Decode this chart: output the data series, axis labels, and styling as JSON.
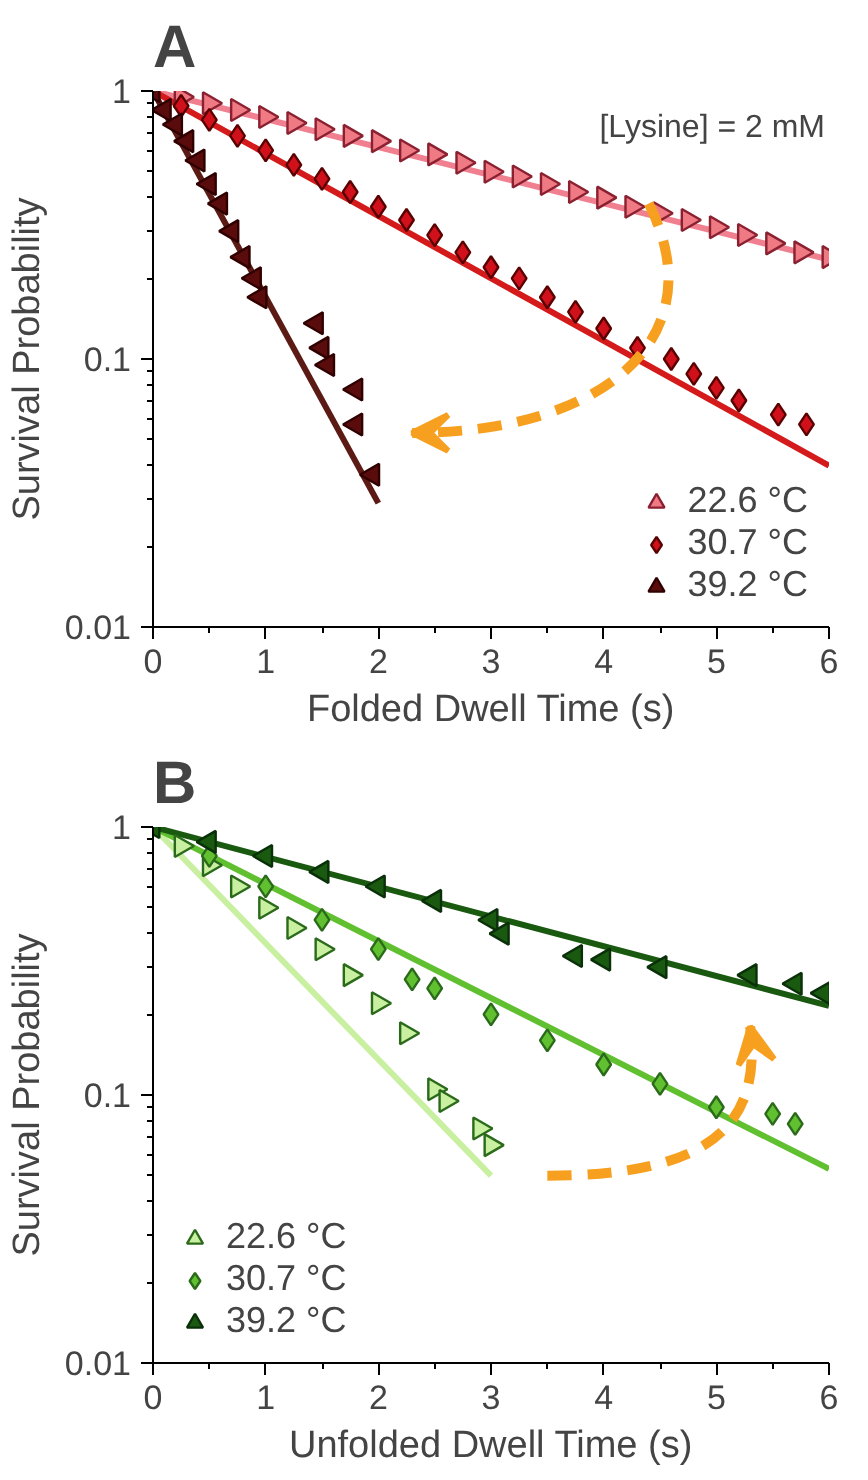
{
  "chart_data": [
    {
      "type": "scatter",
      "title": "A",
      "xlabel": "Folded Dwell Time (s)",
      "ylabel": "Survival Probability",
      "log": "y",
      "xlim": [
        0,
        6
      ],
      "ylim": [
        0.01,
        1
      ],
      "xticks": [
        0,
        1,
        2,
        3,
        4,
        5,
        6
      ],
      "yticks": [
        0.01,
        0.1,
        1
      ],
      "grid": false,
      "legend": "bottom right",
      "annotations": [
        "[Lysine] = 2 mM"
      ],
      "series": [
        {
          "name": "22.6 °C",
          "marker": "triangle",
          "color": "#f07a84",
          "x": [
            0.25,
            0.5,
            0.75,
            1,
            1.25,
            1.5,
            1.75,
            2,
            2.25,
            2.5,
            2.75,
            3,
            3.25,
            3.5,
            3.75,
            4,
            4.25,
            4.5,
            4.75,
            5,
            5.25,
            5.5,
            5.75,
            6
          ],
          "values": [
            0.95,
            0.9,
            0.85,
            0.8,
            0.76,
            0.72,
            0.68,
            0.65,
            0.6,
            0.58,
            0.54,
            0.5,
            0.48,
            0.45,
            0.42,
            0.4,
            0.37,
            0.35,
            0.33,
            0.31,
            0.29,
            0.27,
            0.25,
            0.24
          ]
        },
        {
          "name": "30.7 °C",
          "marker": "diamond",
          "color": "#d0101a",
          "x": [
            0.25,
            0.5,
            0.75,
            1,
            1.25,
            1.5,
            1.75,
            2,
            2.25,
            2.5,
            2.75,
            3,
            3.25,
            3.5,
            3.75,
            4,
            4.3,
            4.6,
            4.8,
            5,
            5.2,
            5.55,
            5.8
          ],
          "values": [
            0.88,
            0.78,
            0.68,
            0.6,
            0.53,
            0.47,
            0.42,
            0.37,
            0.33,
            0.29,
            0.25,
            0.22,
            0.2,
            0.17,
            0.15,
            0.13,
            0.11,
            0.1,
            0.088,
            0.078,
            0.07,
            0.062,
            0.057
          ]
        },
        {
          "name": "39.2 °C",
          "marker": "triangle",
          "color": "#5a0c0c",
          "x": [
            0,
            0.1,
            0.2,
            0.3,
            0.4,
            0.5,
            0.6,
            0.7,
            0.8,
            0.9,
            0.95,
            1.45,
            1.5,
            1.55,
            1.8,
            1.8,
            1.95
          ],
          "values": [
            1,
            0.85,
            0.75,
            0.65,
            0.55,
            0.45,
            0.38,
            0.3,
            0.24,
            0.2,
            0.17,
            0.136,
            0.11,
            0.095,
            0.077,
            0.057,
            0.037
          ]
        },
        {
          "type": "line",
          "color": "#f08090",
          "x": [
            0,
            6
          ],
          "values": [
            1,
            0.235
          ]
        },
        {
          "type": "line",
          "color": "#d41a1a",
          "x": [
            0,
            6
          ],
          "values": [
            1,
            0.04
          ]
        },
        {
          "type": "line",
          "color": "#5c1a14",
          "x": [
            0,
            2
          ],
          "values": [
            1,
            0.029
          ]
        }
      ]
    },
    {
      "type": "scatter",
      "title": "B",
      "xlabel": "Unfolded Dwell Time (s)",
      "ylabel": "Survival Probability",
      "log": "y",
      "xlim": [
        0,
        6
      ],
      "ylim": [
        0.01,
        1
      ],
      "xticks": [
        0,
        1,
        2,
        3,
        4,
        5,
        6
      ],
      "yticks": [
        0.01,
        0.1,
        1
      ],
      "grid": false,
      "legend": "bottom left",
      "series": [
        {
          "name": "22.6 °C",
          "marker": "triangle",
          "color": "#c8f0a0",
          "x": [
            0.25,
            0.5,
            0.75,
            1,
            1.25,
            1.5,
            1.75,
            2,
            2.25,
            2.5,
            2.6,
            2.9,
            3.0
          ],
          "values": [
            0.85,
            0.72,
            0.6,
            0.5,
            0.42,
            0.35,
            0.28,
            0.22,
            0.17,
            0.105,
            0.095,
            0.075,
            0.065
          ]
        },
        {
          "name": "30.7 °C",
          "marker": "diamond",
          "color": "#60c030",
          "x": [
            0.5,
            1,
            1.5,
            2,
            2.3,
            2.5,
            3,
            3.5,
            4,
            4.5,
            5,
            5.5,
            5.7
          ],
          "values": [
            0.78,
            0.6,
            0.45,
            0.35,
            0.27,
            0.25,
            0.2,
            0.16,
            0.13,
            0.11,
            0.09,
            0.085,
            0.078
          ]
        },
        {
          "name": "39.2 °C",
          "marker": "triangle",
          "color": "#1a5a10",
          "x": [
            0,
            0.5,
            1,
            1.5,
            2,
            2.5,
            3,
            3.1,
            3.75,
            4,
            4.5,
            5.3,
            5.7,
            5.95
          ],
          "values": [
            1,
            0.88,
            0.78,
            0.68,
            0.6,
            0.53,
            0.45,
            0.4,
            0.33,
            0.32,
            0.3,
            0.28,
            0.26,
            0.24
          ]
        },
        {
          "type": "line",
          "color": "#c8f0a0",
          "x": [
            0,
            3
          ],
          "values": [
            1,
            0.05
          ]
        },
        {
          "type": "line",
          "color": "#60c030",
          "x": [
            0,
            6
          ],
          "values": [
            1,
            0.053
          ]
        },
        {
          "type": "line",
          "color": "#1a5a10",
          "x": [
            0,
            6
          ],
          "values": [
            1,
            0.215
          ]
        }
      ]
    }
  ]
}
